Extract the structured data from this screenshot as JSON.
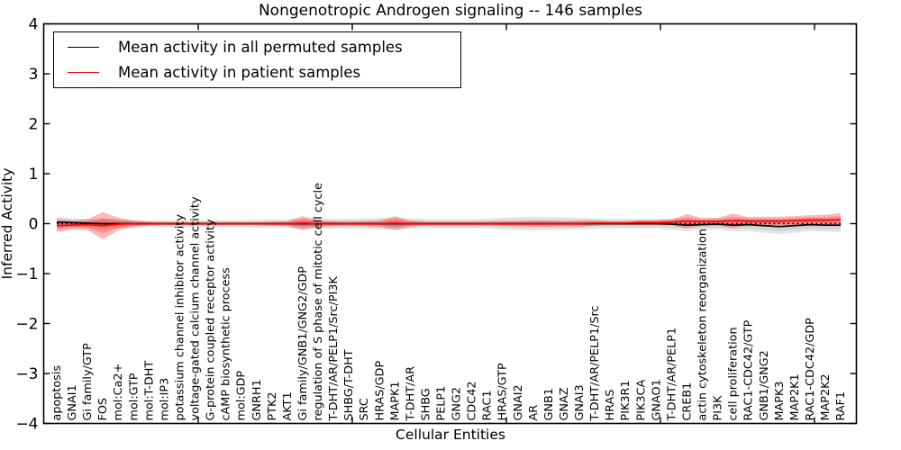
{
  "title": "Nongenotropic Androgen signaling -- 146 samples",
  "axes": {
    "xlabel": "Cellular Entities",
    "ylabel": "Inferred Activity",
    "ytick_labels": [
      "4",
      "3",
      "2",
      "1",
      "0",
      "−1",
      "−2",
      "−3",
      "−4"
    ],
    "ytick_values": [
      4,
      3,
      2,
      1,
      0,
      -1,
      -2,
      -3,
      -4
    ]
  },
  "legend": {
    "entries": [
      {
        "label": "Mean activity in all permuted samples",
        "color": "#000000"
      },
      {
        "label": "Mean activity in patient samples",
        "color": "#ff0000"
      }
    ]
  },
  "colors": {
    "permuted_line": "#000000",
    "patient_line": "#ff0000",
    "permuted_band": "#000000",
    "patient_band": "#ff0000",
    "zero_line": "#000000",
    "frame": "#000000"
  },
  "chart_data": {
    "type": "line",
    "title": "Nongenotropic Androgen signaling -- 146 samples",
    "xlabel": "Cellular Entities",
    "ylabel": "Inferred Activity",
    "ylim": [
      -4,
      4
    ],
    "grid": false,
    "legend_position": "upper left",
    "zero_reference_line": true,
    "categories": [
      "apoptosis",
      "GNAI1",
      "Gi family/GTP",
      "FOS",
      "mol:Ca2+",
      "mol:GTP",
      "mol:T-DHT",
      "mol:IP3",
      "potassium channel inhibitor activity",
      "voltage-gated calcium channel activity",
      "G-protein coupled receptor activity",
      "cAMP biosynthetic process",
      "mol:GDP",
      "GNRH1",
      "PTK2",
      "AKT1",
      "Gi family/GNB1/GNG2/GDP",
      "regulation of S phase of mitotic cell cycle",
      "T-DHT/AR/PELP1/Src/PI3K",
      "SHBG/T-DHT",
      "SRC",
      "HRAS/GDP",
      "MAPK1",
      "T-DHT/AR",
      "SHBG",
      "PELP1",
      "GNG2",
      "CDC42",
      "RAC1",
      "HRAS/GTP",
      "GNAI2",
      "AR",
      "GNB1",
      "GNAZ",
      "GNAI3",
      "T-DHT/AR/PELP1/Src",
      "HRAS",
      "PIK3R1",
      "PIK3CA",
      "GNAO1",
      "T-DHT/AR/PELP1",
      "CREB1",
      "actin cytoskeleton reorganization",
      "PI3K",
      "cell proliferation",
      "RAC1-CDC42/GTP",
      "GNB1/GNG2",
      "MAPK3",
      "MAP2K1",
      "RAC1-CDC42/GDP",
      "MAP2K2",
      "RAF1"
    ],
    "series": [
      {
        "name": "Mean activity in all permuted samples",
        "color": "#000000",
        "values": [
          0.03,
          0.02,
          0.01,
          0,
          0,
          0,
          0,
          0,
          0,
          0,
          0,
          0,
          0,
          0,
          0,
          0,
          0,
          0,
          0,
          0,
          0,
          0,
          0,
          0,
          0,
          0,
          0,
          0,
          0,
          0,
          0,
          0,
          0,
          0,
          0,
          0,
          0,
          0,
          0,
          0,
          -0.01,
          -0.03,
          -0.02,
          -0.01,
          -0.03,
          -0.02,
          -0.04,
          -0.06,
          -0.04,
          -0.02,
          -0.03,
          -0.03
        ]
      },
      {
        "name": "Mean activity in patient samples",
        "color": "#ff0000",
        "values": [
          -0.04,
          -0.03,
          -0.02,
          -0.04,
          -0.01,
          0,
          0,
          0,
          0,
          0,
          0,
          0,
          0,
          0,
          0,
          0,
          0.01,
          0,
          0,
          0,
          0,
          0,
          0.01,
          0,
          0,
          0,
          0,
          0,
          0,
          0,
          0,
          0,
          0,
          0,
          0,
          0.01,
          0.01,
          0.01,
          0.02,
          0.02,
          0.03,
          0.05,
          0.04,
          0.04,
          0.06,
          0.05,
          0.05,
          0.05,
          0.06,
          0.07,
          0.07,
          0.08
        ]
      }
    ],
    "bands": [
      {
        "name": "permuted std band",
        "series": "Mean activity in all permuted samples",
        "color": "#000000",
        "half_widths": [
          0.11,
          0.09,
          0.09,
          0.1,
          0.09,
          0.08,
          0.07,
          0.07,
          0.07,
          0.07,
          0.07,
          0.07,
          0.07,
          0.08,
          0.08,
          0.09,
          0.1,
          0.11,
          0.1,
          0.1,
          0.11,
          0.12,
          0.12,
          0.11,
          0.09,
          0.09,
          0.09,
          0.09,
          0.1,
          0.12,
          0.13,
          0.14,
          0.13,
          0.13,
          0.12,
          0.11,
          0.1,
          0.1,
          0.1,
          0.1,
          0.11,
          0.12,
          0.11,
          0.11,
          0.12,
          0.13,
          0.14,
          0.15,
          0.14,
          0.13,
          0.13,
          0.14
        ]
      },
      {
        "name": "patient std band",
        "series": "Mean activity in patient samples",
        "color": "#ff0000",
        "half_widths": [
          0.13,
          0.09,
          0.11,
          0.27,
          0.13,
          0.06,
          0.04,
          0.03,
          0.03,
          0.03,
          0.03,
          0.03,
          0.03,
          0.03,
          0.04,
          0.05,
          0.14,
          0.06,
          0.05,
          0.04,
          0.05,
          0.06,
          0.14,
          0.06,
          0.04,
          0.04,
          0.04,
          0.04,
          0.04,
          0.05,
          0.05,
          0.06,
          0.06,
          0.05,
          0.06,
          0.05,
          0.04,
          0.04,
          0.05,
          0.05,
          0.06,
          0.14,
          0.07,
          0.08,
          0.14,
          0.08,
          0.09,
          0.09,
          0.09,
          0.1,
          0.11,
          0.13
        ]
      }
    ]
  }
}
